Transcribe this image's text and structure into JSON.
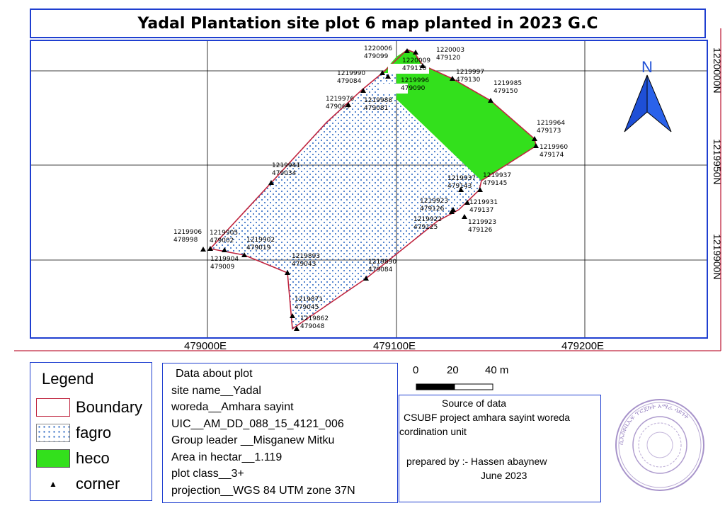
{
  "title": "Yadal Plantation site plot 6 map planted in 2023 G.C",
  "north_label": "N",
  "map": {
    "x_ticks": [
      {
        "label": "479000E",
        "easting": 479000
      },
      {
        "label": "479100E",
        "easting": 479100
      },
      {
        "label": "479200E",
        "easting": 479200
      }
    ],
    "y_ticks": [
      {
        "label": "1220000N",
        "northing": 1220000
      },
      {
        "label": "1219950N",
        "northing": 1219950
      },
      {
        "label": "1219900N",
        "northing": 1219900
      }
    ],
    "points": [
      {
        "n": "1220006",
        "e": "479099"
      },
      {
        "n": "1220003",
        "e": "479120"
      },
      {
        "n": "1220009",
        "e": "479110"
      },
      {
        "n": "1219997",
        "e": "479130"
      },
      {
        "n": "1219996",
        "e": "479090"
      },
      {
        "n": "1219990",
        "e": "479084"
      },
      {
        "n": "1219985",
        "e": "479150"
      },
      {
        "n": "1219988",
        "e": "479081"
      },
      {
        "n": "1219976",
        "e": "479069"
      },
      {
        "n": "1219964",
        "e": "479173"
      },
      {
        "n": "1219960",
        "e": "479174"
      },
      {
        "n": "1219941",
        "e": "479034"
      },
      {
        "n": "1219937",
        "e": "479143"
      },
      {
        "n": "1219937",
        "e": "479145"
      },
      {
        "n": "1219923",
        "e": "479126"
      },
      {
        "n": "1219931",
        "e": "479137"
      },
      {
        "n": "1219922",
        "e": "479125"
      },
      {
        "n": "1219923",
        "e": "479126"
      },
      {
        "n": "1219906",
        "e": "478998"
      },
      {
        "n": "1219905",
        "e": "479002"
      },
      {
        "n": "1219902",
        "e": "479019"
      },
      {
        "n": "1219904",
        "e": "479009"
      },
      {
        "n": "1219893",
        "e": "479043"
      },
      {
        "n": "1219890",
        "e": "479084"
      },
      {
        "n": "1219871",
        "e": "479045"
      },
      {
        "n": "1219862",
        "e": "479048"
      }
    ]
  },
  "legend": {
    "title": "Legend",
    "items": [
      {
        "label": "Boundary",
        "color": "#c0253f"
      },
      {
        "label": "fagro",
        "color": "#1f5fbf"
      },
      {
        "label": "heco",
        "color": "#33e01c"
      },
      {
        "label": "corner",
        "color": "#000000"
      }
    ]
  },
  "plot_info": {
    "heading": "Data about plot",
    "lines": [
      "site name__Yadal",
      "woreda__Amhara sayint",
      "UIC__AM_DD_088_15_4121_006",
      "Group leader __Misganew Mitku",
      "Area in hectar__1.119",
      "plot class__3+",
      "projection__WGS 84 UTM zone 37N"
    ]
  },
  "scale": {
    "labels": [
      "0",
      "20",
      "40 m"
    ]
  },
  "source": {
    "heading": "Source of data",
    "line1": "CSUBF project amhara sayint woreda",
    "line2": "cordination unit",
    "prepared_by": "prepared by :- Hassen abaynew",
    "date": "June 2023"
  },
  "stamp": {
    "text": "ሲኤስዩቢኤፍ ፕሮጀክት አማራ ሳይንት"
  },
  "colors": {
    "frame": "#1f3fd0",
    "boundary": "#c0253f",
    "heco": "#33e01c",
    "fagro_dot": "#1f5fbf",
    "north_arrow": "#1e4fd6"
  }
}
